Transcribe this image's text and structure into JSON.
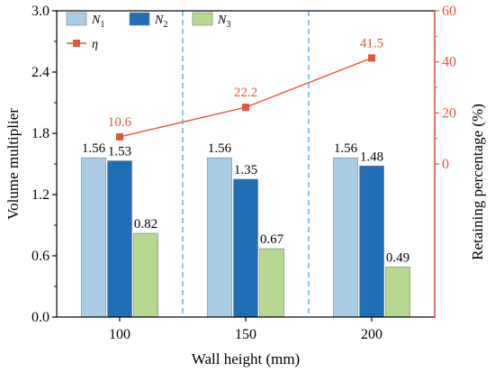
{
  "colors": {
    "n1": "#a9cde6",
    "n2": "#1f6eb6",
    "n3": "#b6d88f",
    "eta": "#e4553b",
    "separator": "#4aa6de"
  },
  "chart_data": {
    "type": "bar",
    "categories": [
      "100",
      "150",
      "200"
    ],
    "xlabel": "Wall height (mm)",
    "ylabel": "Volume multiplier",
    "ylim": [
      0,
      3.0
    ],
    "y_ticks": [
      "0.0",
      "0.6",
      "1.2",
      "1.8",
      "2.4",
      "3.0"
    ],
    "y2label": "Retaining percentage (%)",
    "y2lim": [
      -60,
      60
    ],
    "y2_ticks": [
      "0",
      "20",
      "40",
      "60"
    ],
    "series": [
      {
        "name": "N",
        "sub": "1",
        "color": "#a9cde6",
        "values": [
          1.56,
          1.56,
          1.56
        ],
        "labels": [
          "1.56",
          "1.56",
          "1.56"
        ]
      },
      {
        "name": "N",
        "sub": "2",
        "color": "#1f6eb6",
        "values": [
          1.53,
          1.35,
          1.48
        ],
        "labels": [
          "1.53",
          "1.35",
          "1.48"
        ]
      },
      {
        "name": "N",
        "sub": "3",
        "color": "#b6d88f",
        "values": [
          0.82,
          0.67,
          0.49
        ],
        "labels": [
          "0.82",
          "0.67",
          "0.49"
        ]
      }
    ],
    "line_series": {
      "name": "η",
      "axis": "right",
      "color": "#e4553b",
      "values": [
        10.6,
        22.2,
        41.5
      ],
      "labels": [
        "10.6",
        "22.2",
        "41.5"
      ]
    },
    "legend": "top-left",
    "category_separators": "dashed"
  }
}
